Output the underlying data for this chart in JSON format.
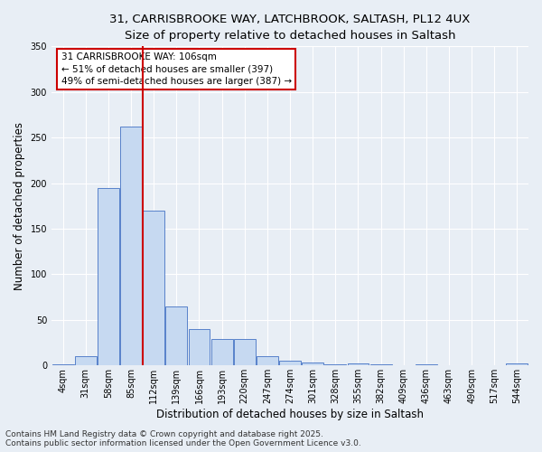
{
  "title_line1": "31, CARRISBROOKE WAY, LATCHBROOK, SALTASH, PL12 4UX",
  "title_line2": "Size of property relative to detached houses in Saltash",
  "xlabel": "Distribution of detached houses by size in Saltash",
  "ylabel": "Number of detached properties",
  "bar_labels": [
    "4sqm",
    "31sqm",
    "58sqm",
    "85sqm",
    "112sqm",
    "139sqm",
    "166sqm",
    "193sqm",
    "220sqm",
    "247sqm",
    "274sqm",
    "301sqm",
    "328sqm",
    "355sqm",
    "382sqm",
    "409sqm",
    "436sqm",
    "463sqm",
    "490sqm",
    "517sqm",
    "544sqm"
  ],
  "bar_values": [
    1,
    10,
    195,
    262,
    170,
    65,
    40,
    29,
    29,
    10,
    5,
    3,
    1,
    2,
    1,
    0,
    1,
    0,
    0,
    0,
    2
  ],
  "bar_color": "#c6d9f1",
  "bar_edge_color": "#4472c4",
  "vline_x": 3.5,
  "vline_color": "#cc0000",
  "annotation_title": "31 CARRISBROOKE WAY: 106sqm",
  "annotation_line2": "← 51% of detached houses are smaller (397)",
  "annotation_line3": "49% of semi-detached houses are larger (387) →",
  "annotation_box_color": "#cc0000",
  "annotation_bg_color": "#ffffff",
  "ylim": [
    0,
    350
  ],
  "yticks": [
    0,
    50,
    100,
    150,
    200,
    250,
    300,
    350
  ],
  "footer_line1": "Contains HM Land Registry data © Crown copyright and database right 2025.",
  "footer_line2": "Contains public sector information licensed under the Open Government Licence v3.0.",
  "bg_color": "#e8eef5",
  "plot_bg_color": "#e8eef5",
  "grid_color": "#ffffff",
  "title_fontsize": 9.5,
  "axis_label_fontsize": 8.5,
  "tick_fontsize": 7,
  "footer_fontsize": 6.5
}
